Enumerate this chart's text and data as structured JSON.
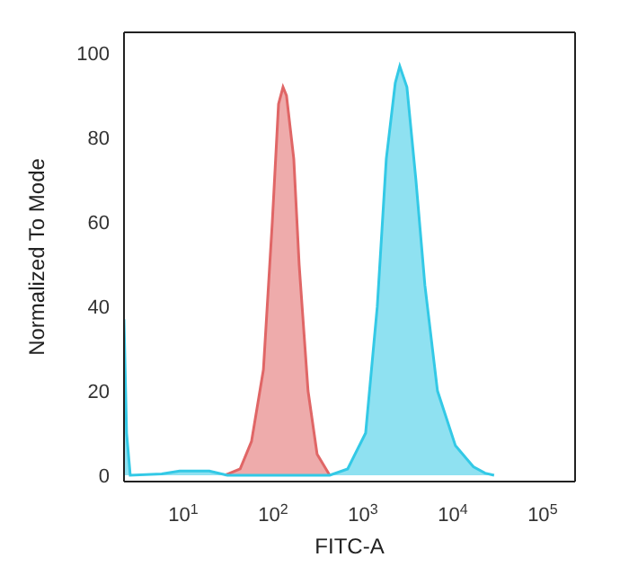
{
  "chart_data": {
    "type": "area",
    "xlabel": "FITC-A",
    "ylabel": "Normalized To Mode",
    "log": "x",
    "grid": false,
    "xlim": [
      2.19,
      230000
    ],
    "ylim": [
      -1.5,
      105
    ],
    "xticks": [
      {
        "value": 10,
        "label": "10$^{1}$"
      },
      {
        "value": 100,
        "label": "10$^{2}$"
      },
      {
        "value": 1000,
        "label": "10$^{3}$"
      },
      {
        "value": 10000,
        "label": "10$^{4}$"
      },
      {
        "value": 100000,
        "label": "10$^{5}$"
      }
    ],
    "yticks": [
      0,
      20,
      40,
      60,
      80,
      100
    ],
    "series": [
      {
        "color": "#e06666",
        "x": [
          29,
          43,
          57.5,
          78,
          98,
          115,
          129,
          141,
          170,
          195,
          245,
          309,
          427
        ],
        "values": [
          0,
          1.5,
          8,
          25,
          60,
          88,
          92,
          90,
          75,
          50,
          20,
          5,
          0
        ]
      },
      {
        "color": "#33c9e6",
        "x": [
          2.19,
          2.34,
          2.57,
          5.75,
          9.1,
          19.5,
          30.9,
          427,
          676,
          1072,
          1445,
          1820,
          2291,
          2570,
          3090,
          3890,
          4898,
          6761,
          10715,
          16982,
          22909,
          28840
        ],
        "values": [
          37,
          10,
          0,
          0.3,
          1,
          1,
          0,
          0,
          1.5,
          10,
          40,
          75,
          93,
          97,
          92,
          70,
          45,
          20,
          7,
          2,
          0.5,
          0
        ]
      }
    ]
  }
}
